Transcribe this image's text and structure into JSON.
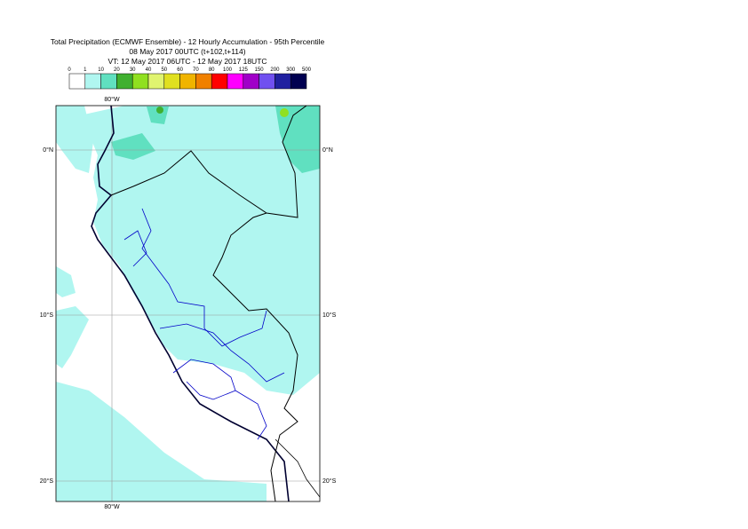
{
  "header": {
    "title_lines": [
      "Total Precipitation (ECMWF Ensemble) - 12 Hourly Accumulation - 95th Percentile",
      "08 May 2017 00UTC (t+102,t+114)",
      "VT: 12 May 2017 06UTC - 12 May 2017 18UTC"
    ]
  },
  "legend": {
    "labels": [
      "0",
      "1",
      "10",
      "20",
      "30",
      "40",
      "50",
      "60",
      "70",
      "80",
      "100",
      "125",
      "150",
      "200",
      "300",
      "500"
    ],
    "colors": [
      "#ffffff",
      "#b0f6f0",
      "#60e0c0",
      "#40b030",
      "#90e020",
      "#e0f470",
      "#e0e020",
      "#f0b400",
      "#f08000",
      "#ff0000",
      "#ff00ff",
      "#a000c8",
      "#7050f0",
      "#2020a0",
      "#000050"
    ]
  },
  "map": {
    "lon_labels": [
      "80°W"
    ],
    "lat_labels": [
      "0°N",
      "10°S",
      "20°S"
    ]
  }
}
